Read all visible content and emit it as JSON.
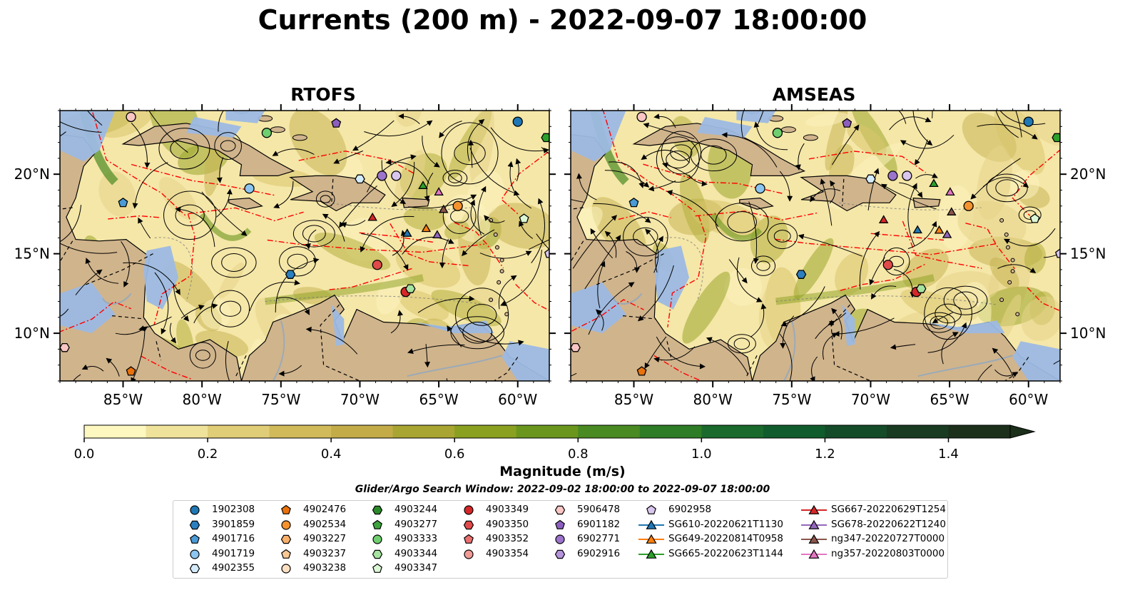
{
  "title": "Currents (200 m) - 2022-09-07 18:00:00",
  "panels": [
    {
      "title": "RTOFS"
    },
    {
      "title": "AMSEAS"
    }
  ],
  "axes": {
    "lon_ticks": [
      "85°W",
      "80°W",
      "75°W",
      "70°W",
      "65°W",
      "60°W"
    ],
    "lat_ticks": [
      "20°N",
      "15°N",
      "10°N"
    ],
    "lon_range": [
      -89,
      -58
    ],
    "lat_range": [
      7,
      24
    ]
  },
  "colorbar": {
    "label": "Magnitude (m/s)",
    "ticks": [
      "0.0",
      "0.2",
      "0.4",
      "0.6",
      "0.8",
      "1.0",
      "1.2",
      "1.4"
    ],
    "range": [
      0,
      1.5
    ],
    "extend": "max",
    "colors": [
      "#fdf7c0",
      "#efe29a",
      "#e0cd78",
      "#d1ba5a",
      "#c3ab48",
      "#a9a532",
      "#8aa020",
      "#6a961e",
      "#4a8a22",
      "#2f7c26",
      "#196a2c",
      "#115c2c",
      "#144b28",
      "#183b22",
      "#1b2f1b"
    ]
  },
  "colors": {
    "land": "#d0b48c",
    "water": "#9cb9e3",
    "boundary_red": "#ff0000",
    "streamline": "#000000"
  },
  "search_window": "Glider/Argo Search Window: 2022-09-02 18:00:00 to 2022-09-07 18:00:00",
  "legend": [
    {
      "label": "1902308",
      "marker": "circle",
      "color": "#1f77b4"
    },
    {
      "label": "3901859",
      "marker": "hexagon",
      "color": "#2a7fbf"
    },
    {
      "label": "4901716",
      "marker": "pentagon",
      "color": "#4a9bd6"
    },
    {
      "label": "4901719",
      "marker": "circle",
      "color": "#8cc5ef"
    },
    {
      "label": "4902355",
      "marker": "hexagon",
      "color": "#d4ebfb"
    },
    {
      "label": "4902476",
      "marker": "pentagon",
      "color": "#e8720c"
    },
    {
      "label": "4902534",
      "marker": "circle",
      "color": "#f5922e"
    },
    {
      "label": "4903227",
      "marker": "hexagon",
      "color": "#f8b06a"
    },
    {
      "label": "4903237",
      "marker": "pentagon",
      "color": "#fbc894"
    },
    {
      "label": "4903238",
      "marker": "circle",
      "color": "#fde0c2"
    },
    {
      "label": "4903244",
      "marker": "hexagon",
      "color": "#2a8a2a"
    },
    {
      "label": "4903277",
      "marker": "pentagon",
      "color": "#3da33d"
    },
    {
      "label": "4903333",
      "marker": "circle",
      "color": "#6fcf6f"
    },
    {
      "label": "4903344",
      "marker": "hexagon",
      "color": "#a6e3a0"
    },
    {
      "label": "4903347",
      "marker": "pentagon",
      "color": "#dcf7d6"
    },
    {
      "label": "4903349",
      "marker": "circle",
      "color": "#d62728"
    },
    {
      "label": "4903350",
      "marker": "hexagon",
      "color": "#e04a4a"
    },
    {
      "label": "4903352",
      "marker": "pentagon",
      "color": "#ea6f6f"
    },
    {
      "label": "4903354",
      "marker": "circle",
      "color": "#f29a96"
    },
    {
      "label": "5906478",
      "marker": "hexagon",
      "color": "#f9c6c4"
    },
    {
      "label": "6901182",
      "marker": "pentagon",
      "color": "#8c5fbf"
    },
    {
      "label": "6902771",
      "marker": "circle",
      "color": "#9c74cc"
    },
    {
      "label": "6902916",
      "marker": "hexagon",
      "color": "#b594dc"
    },
    {
      "label": "6902958",
      "marker": "pentagon",
      "color": "#d9c6ee"
    },
    {
      "label": "SG610-20220621T1130",
      "marker": "triangle-line",
      "color": "#1f77b4"
    },
    {
      "label": "SG649-20220814T0958",
      "marker": "triangle-line",
      "color": "#ff7f0e"
    },
    {
      "label": "SG665-20220623T1144",
      "marker": "triangle-line",
      "color": "#2ca02c"
    },
    {
      "label": "SG667-20220629T1254",
      "marker": "triangle-line",
      "color": "#d62728"
    },
    {
      "label": "SG678-20220622T1240",
      "marker": "triangle-line",
      "color": "#9467bd"
    },
    {
      "label": "ng347-20220727T0000",
      "marker": "triangle-line",
      "color": "#8c564b"
    },
    {
      "label": "ng357-20220803T0000",
      "marker": "triangle-line",
      "color": "#e377c2"
    }
  ],
  "map_markers": [
    {
      "lon": -84.5,
      "lat": 23.6,
      "marker": "circle",
      "color": "#f9c6c4"
    },
    {
      "lon": -60.0,
      "lat": 23.3,
      "marker": "circle",
      "color": "#1f77b4"
    },
    {
      "lon": -58.2,
      "lat": 22.3,
      "marker": "hexagon",
      "color": "#2ca02c"
    },
    {
      "lon": -75.9,
      "lat": 22.6,
      "marker": "circle",
      "color": "#6fcf6f"
    },
    {
      "lon": -71.5,
      "lat": 23.2,
      "marker": "pentagon",
      "color": "#8c5fbf"
    },
    {
      "lon": -85.0,
      "lat": 18.2,
      "marker": "pentagon",
      "color": "#4a9bd6"
    },
    {
      "lon": -77.0,
      "lat": 19.1,
      "marker": "circle",
      "color": "#8cc5ef"
    },
    {
      "lon": -70.0,
      "lat": 19.7,
      "marker": "hexagon",
      "color": "#d4ebfb"
    },
    {
      "lon": -68.6,
      "lat": 19.9,
      "marker": "circle",
      "color": "#9c74cc"
    },
    {
      "lon": -67.7,
      "lat": 19.9,
      "marker": "circle",
      "color": "#d9c6ee"
    },
    {
      "lon": -66.0,
      "lat": 19.3,
      "marker": "triangle",
      "color": "#2ca02c"
    },
    {
      "lon": -65.0,
      "lat": 18.9,
      "marker": "triangle",
      "color": "#e377c2"
    },
    {
      "lon": -64.7,
      "lat": 17.8,
      "marker": "triangle",
      "color": "#8c564b"
    },
    {
      "lon": -63.8,
      "lat": 18.0,
      "marker": "circle",
      "color": "#f5922e"
    },
    {
      "lon": -69.2,
      "lat": 17.3,
      "marker": "triangle",
      "color": "#d62728"
    },
    {
      "lon": -67.0,
      "lat": 16.3,
      "marker": "triangle",
      "color": "#1f77b4"
    },
    {
      "lon": -65.8,
      "lat": 16.6,
      "marker": "triangle",
      "color": "#ff7f0e"
    },
    {
      "lon": -65.1,
      "lat": 16.2,
      "marker": "triangle",
      "color": "#9467bd"
    },
    {
      "lon": -59.6,
      "lat": 17.2,
      "marker": "pentagon",
      "color": "#dcf7d6"
    },
    {
      "lon": -58.0,
      "lat": 15.0,
      "marker": "pentagon",
      "color": "#d9c6ee"
    },
    {
      "lon": -74.4,
      "lat": 13.7,
      "marker": "hexagon",
      "color": "#2a7fbf"
    },
    {
      "lon": -68.9,
      "lat": 14.3,
      "marker": "circle",
      "color": "#e04a4a"
    },
    {
      "lon": -67.1,
      "lat": 12.6,
      "marker": "circle",
      "color": "#d62728"
    },
    {
      "lon": -66.8,
      "lat": 12.8,
      "marker": "hexagon",
      "color": "#a6e3a0"
    },
    {
      "lon": -88.7,
      "lat": 9.1,
      "marker": "hexagon",
      "color": "#f9c6c4"
    },
    {
      "lon": -84.5,
      "lat": 7.6,
      "marker": "pentagon",
      "color": "#e8720c"
    }
  ]
}
